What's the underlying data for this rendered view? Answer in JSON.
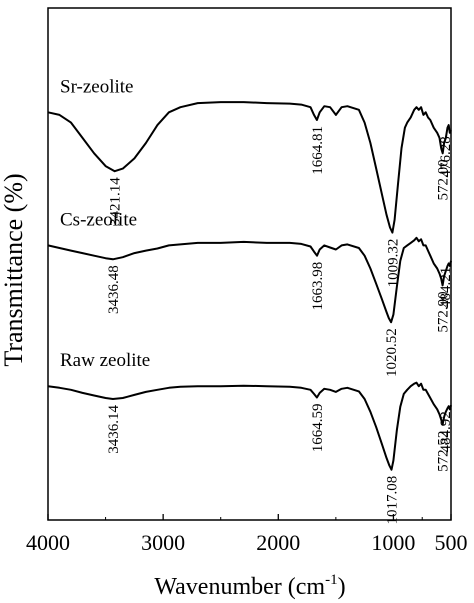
{
  "chart_data": {
    "type": "line",
    "title": "",
    "xlabel": "Wavenumber (cm",
    "xlabel_superscript": "-1",
    "xlabel_suffix": ")",
    "ylabel": "Transmittance (%)",
    "xlim": [
      4000,
      500
    ],
    "x_reversed": true,
    "x_ticks": [
      4000,
      3000,
      2000,
      1000,
      500
    ],
    "x_tick_labels": [
      "4000",
      "3000",
      "2000",
      "1000",
      "500"
    ],
    "y_ticks_shown": false,
    "grid": false,
    "series": [
      {
        "name": "Sr-zeolite",
        "baseline": 0.09,
        "points": [
          [
            4000,
            0.11
          ],
          [
            3900,
            0.115
          ],
          [
            3800,
            0.13
          ],
          [
            3700,
            0.16
          ],
          [
            3600,
            0.19
          ],
          [
            3500,
            0.215
          ],
          [
            3421.14,
            0.225
          ],
          [
            3350,
            0.22
          ],
          [
            3250,
            0.2
          ],
          [
            3150,
            0.17
          ],
          [
            3050,
            0.135
          ],
          [
            2950,
            0.11
          ],
          [
            2850,
            0.1
          ],
          [
            2700,
            0.092
          ],
          [
            2500,
            0.09
          ],
          [
            2300,
            0.09
          ],
          [
            2100,
            0.092
          ],
          [
            1900,
            0.093
          ],
          [
            1800,
            0.095
          ],
          [
            1720,
            0.1
          ],
          [
            1690,
            0.115
          ],
          [
            1664.81,
            0.125
          ],
          [
            1640,
            0.11
          ],
          [
            1600,
            0.098
          ],
          [
            1550,
            0.1
          ],
          [
            1500,
            0.115
          ],
          [
            1450,
            0.1
          ],
          [
            1400,
            0.098
          ],
          [
            1300,
            0.105
          ],
          [
            1250,
            0.13
          ],
          [
            1200,
            0.17
          ],
          [
            1150,
            0.22
          ],
          [
            1100,
            0.27
          ],
          [
            1060,
            0.31
          ],
          [
            1030,
            0.335
          ],
          [
            1009.32,
            0.345
          ],
          [
            990,
            0.32
          ],
          [
            960,
            0.25
          ],
          [
            930,
            0.18
          ],
          [
            900,
            0.14
          ],
          [
            880,
            0.13
          ],
          [
            850,
            0.12
          ],
          [
            820,
            0.105
          ],
          [
            800,
            0.1
          ],
          [
            780,
            0.105
          ],
          [
            760,
            0.1
          ],
          [
            740,
            0.115
          ],
          [
            720,
            0.11
          ],
          [
            700,
            0.12
          ],
          [
            680,
            0.125
          ],
          [
            650,
            0.14
          ],
          [
            620,
            0.15
          ],
          [
            600,
            0.16
          ],
          [
            585,
            0.18
          ],
          [
            572,
            0.19
          ],
          [
            560,
            0.17
          ],
          [
            545,
            0.16
          ],
          [
            530,
            0.14
          ],
          [
            520,
            0.135
          ],
          [
            510,
            0.15
          ],
          [
            500,
            0.145
          ]
        ],
        "peak_labels": [
          {
            "x": 3421.14,
            "text": "3421.14"
          },
          {
            "x": 1664.81,
            "text": "1664.81"
          },
          {
            "x": 1009.32,
            "text": "1009.32"
          },
          {
            "x": 572.0,
            "text": "572.00"
          },
          {
            "x": 476.28,
            "text": "476.28"
          }
        ]
      },
      {
        "name": "Cs-zeolite",
        "baseline": 0.36,
        "points": [
          [
            4000,
            0.37
          ],
          [
            3900,
            0.375
          ],
          [
            3800,
            0.38
          ],
          [
            3700,
            0.385
          ],
          [
            3600,
            0.39
          ],
          [
            3500,
            0.395
          ],
          [
            3436.48,
            0.397
          ],
          [
            3350,
            0.393
          ],
          [
            3250,
            0.385
          ],
          [
            3150,
            0.38
          ],
          [
            3050,
            0.376
          ],
          [
            2950,
            0.37
          ],
          [
            2850,
            0.368
          ],
          [
            2700,
            0.365
          ],
          [
            2500,
            0.365
          ],
          [
            2300,
            0.363
          ],
          [
            2100,
            0.365
          ],
          [
            1900,
            0.365
          ],
          [
            1800,
            0.367
          ],
          [
            1720,
            0.372
          ],
          [
            1690,
            0.382
          ],
          [
            1663.98,
            0.39
          ],
          [
            1640,
            0.378
          ],
          [
            1600,
            0.37
          ],
          [
            1550,
            0.374
          ],
          [
            1500,
            0.378
          ],
          [
            1450,
            0.37
          ],
          [
            1400,
            0.368
          ],
          [
            1300,
            0.375
          ],
          [
            1250,
            0.39
          ],
          [
            1200,
            0.415
          ],
          [
            1150,
            0.445
          ],
          [
            1100,
            0.475
          ],
          [
            1060,
            0.5
          ],
          [
            1040,
            0.512
          ],
          [
            1020.52,
            0.52
          ],
          [
            1000,
            0.505
          ],
          [
            970,
            0.45
          ],
          [
            940,
            0.4
          ],
          [
            910,
            0.375
          ],
          [
            880,
            0.37
          ],
          [
            850,
            0.365
          ],
          [
            820,
            0.36
          ],
          [
            800,
            0.355
          ],
          [
            780,
            0.362
          ],
          [
            760,
            0.358
          ],
          [
            740,
            0.37
          ],
          [
            720,
            0.37
          ],
          [
            700,
            0.38
          ],
          [
            680,
            0.39
          ],
          [
            650,
            0.405
          ],
          [
            620,
            0.415
          ],
          [
            600,
            0.425
          ],
          [
            585,
            0.435
          ],
          [
            572.9,
            0.448
          ],
          [
            560,
            0.43
          ],
          [
            545,
            0.42
          ],
          [
            530,
            0.41
          ],
          [
            520,
            0.405
          ],
          [
            510,
            0.41
          ],
          [
            500,
            0.4
          ]
        ],
        "peak_labels": [
          {
            "x": 3436.48,
            "text": "3436.48"
          },
          {
            "x": 1663.98,
            "text": "1663.98"
          },
          {
            "x": 1020.52,
            "text": "1020.52"
          },
          {
            "x": 572.9,
            "text": "572.90"
          },
          {
            "x": 484.21,
            "text": "484.21"
          }
        ]
      },
      {
        "name": "Raw zeolite",
        "baseline": 0.64,
        "points": [
          [
            4000,
            0.645
          ],
          [
            3900,
            0.648
          ],
          [
            3800,
            0.652
          ],
          [
            3700,
            0.658
          ],
          [
            3600,
            0.663
          ],
          [
            3500,
            0.668
          ],
          [
            3436.14,
            0.67
          ],
          [
            3350,
            0.668
          ],
          [
            3250,
            0.662
          ],
          [
            3150,
            0.656
          ],
          [
            3050,
            0.652
          ],
          [
            2950,
            0.648
          ],
          [
            2850,
            0.646
          ],
          [
            2700,
            0.645
          ],
          [
            2500,
            0.645
          ],
          [
            2300,
            0.644
          ],
          [
            2100,
            0.645
          ],
          [
            1900,
            0.646
          ],
          [
            1800,
            0.648
          ],
          [
            1720,
            0.652
          ],
          [
            1690,
            0.66
          ],
          [
            1664.59,
            0.667
          ],
          [
            1640,
            0.658
          ],
          [
            1600,
            0.65
          ],
          [
            1550,
            0.652
          ],
          [
            1500,
            0.656
          ],
          [
            1450,
            0.65
          ],
          [
            1400,
            0.648
          ],
          [
            1300,
            0.655
          ],
          [
            1250,
            0.67
          ],
          [
            1200,
            0.695
          ],
          [
            1150,
            0.725
          ],
          [
            1100,
            0.758
          ],
          [
            1060,
            0.785
          ],
          [
            1035,
            0.8
          ],
          [
            1017.08,
            0.808
          ],
          [
            1000,
            0.79
          ],
          [
            970,
            0.73
          ],
          [
            940,
            0.685
          ],
          [
            910,
            0.66
          ],
          [
            880,
            0.652
          ],
          [
            850,
            0.645
          ],
          [
            820,
            0.64
          ],
          [
            800,
            0.638
          ],
          [
            780,
            0.645
          ],
          [
            760,
            0.64
          ],
          [
            740,
            0.652
          ],
          [
            720,
            0.652
          ],
          [
            700,
            0.66
          ],
          [
            680,
            0.668
          ],
          [
            650,
            0.68
          ],
          [
            620,
            0.69
          ],
          [
            600,
            0.7
          ],
          [
            585,
            0.71
          ],
          [
            572.52,
            0.72
          ],
          [
            560,
            0.705
          ],
          [
            545,
            0.695
          ],
          [
            530,
            0.688
          ],
          [
            520,
            0.684
          ],
          [
            510,
            0.69
          ],
          [
            500,
            0.682
          ]
        ],
        "peak_labels": [
          {
            "x": 3436.14,
            "text": "3436.14"
          },
          {
            "x": 1664.59,
            "text": "1664.59"
          },
          {
            "x": 1017.08,
            "text": "1017.08"
          },
          {
            "x": 572.52,
            "text": "572.52"
          },
          {
            "x": 484.92,
            "text": "484.92"
          }
        ]
      }
    ]
  }
}
